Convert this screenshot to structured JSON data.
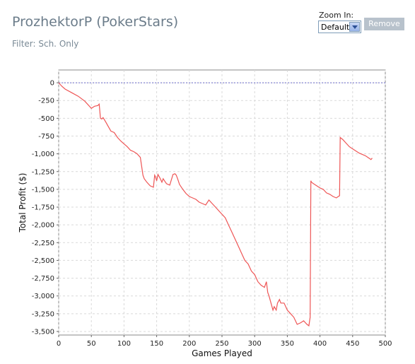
{
  "header": {
    "title": "ProzhektorP (PokerStars)",
    "filter": "Filter: Sch. Only"
  },
  "controls": {
    "zoom_label": "Zoom In:",
    "zoom_value": "Default",
    "remove_label": "Remove"
  },
  "chart_data": {
    "type": "line",
    "xlabel": "Games Played",
    "ylabel": "Total Profit ($)",
    "xlim": [
      0,
      500
    ],
    "ylim": [
      -3550,
      180
    ],
    "grid": true,
    "xticks": [
      0,
      50,
      100,
      150,
      200,
      250,
      300,
      350,
      400,
      450,
      500
    ],
    "yticks": [
      0,
      -250,
      -500,
      -750,
      -1000,
      -1250,
      -1500,
      -1750,
      -2000,
      -2250,
      -2500,
      -2750,
      -3000,
      -3250,
      -3500
    ],
    "xtick_labels": [
      "0",
      "50",
      "100",
      "150",
      "200",
      "250",
      "300",
      "350",
      "400",
      "450",
      "500"
    ],
    "ytick_labels": [
      "0",
      "-250",
      "-500",
      "-750",
      "-1,000",
      "-1,250",
      "-1,500",
      "-1,750",
      "-2,000",
      "-2,250",
      "-2,500",
      "-2,750",
      "-3,000",
      "-3,250",
      "-3,500"
    ],
    "zero_line": 0,
    "colors": {
      "series": "#ee5555",
      "zero_line": "#6b6bcc",
      "grid": "#d9d9d9"
    },
    "series": [
      {
        "x": [
          0,
          5,
          10,
          20,
          30,
          40,
          50,
          55,
          60,
          62,
          64,
          66,
          68,
          70,
          72,
          75,
          80,
          85,
          90,
          95,
          100,
          105,
          110,
          115,
          120,
          125,
          129,
          131,
          135,
          140,
          145,
          147,
          148,
          150,
          152,
          155,
          158,
          160,
          162,
          165,
          170,
          175,
          178,
          180,
          182,
          185,
          190,
          195,
          200,
          205,
          210,
          215,
          220,
          225,
          230,
          235,
          240,
          245,
          250,
          255,
          260,
          265,
          270,
          275,
          280,
          285,
          290,
          295,
          300,
          305,
          310,
          315,
          318,
          320,
          322,
          325,
          328,
          330,
          333,
          335,
          338,
          340,
          345,
          350,
          355,
          360,
          365,
          370,
          375,
          380,
          383,
          385,
          386,
          387,
          390,
          395,
          400,
          405,
          410,
          415,
          420,
          425,
          428,
          430,
          431,
          435,
          440,
          445,
          450,
          455,
          460,
          465,
          470,
          475,
          478,
          480
        ],
        "y": [
          0,
          -50,
          -90,
          -140,
          -190,
          -260,
          -360,
          -330,
          -320,
          -300,
          -500,
          -510,
          -490,
          -520,
          -550,
          -600,
          -680,
          -700,
          -770,
          -820,
          -860,
          -900,
          -950,
          -970,
          -1000,
          -1050,
          -1300,
          -1350,
          -1400,
          -1450,
          -1470,
          -1300,
          -1320,
          -1380,
          -1290,
          -1340,
          -1400,
          -1350,
          -1380,
          -1420,
          -1440,
          -1290,
          -1280,
          -1300,
          -1350,
          -1430,
          -1500,
          -1560,
          -1600,
          -1620,
          -1640,
          -1680,
          -1700,
          -1720,
          -1650,
          -1700,
          -1750,
          -1800,
          -1850,
          -1900,
          -2000,
          -2100,
          -2200,
          -2300,
          -2400,
          -2500,
          -2550,
          -2650,
          -2700,
          -2800,
          -2850,
          -2880,
          -2800,
          -2950,
          -3000,
          -3100,
          -3200,
          -3150,
          -3200,
          -3100,
          -3050,
          -3100,
          -3100,
          -3200,
          -3250,
          -3300,
          -3400,
          -3380,
          -3350,
          -3400,
          -3420,
          -3300,
          -1380,
          -1400,
          -1420,
          -1450,
          -1480,
          -1500,
          -1550,
          -1570,
          -1600,
          -1620,
          -1600,
          -1590,
          -770,
          -800,
          -850,
          -900,
          -930,
          -960,
          -990,
          -1010,
          -1030,
          -1060,
          -1080,
          -1060
        ]
      }
    ]
  }
}
